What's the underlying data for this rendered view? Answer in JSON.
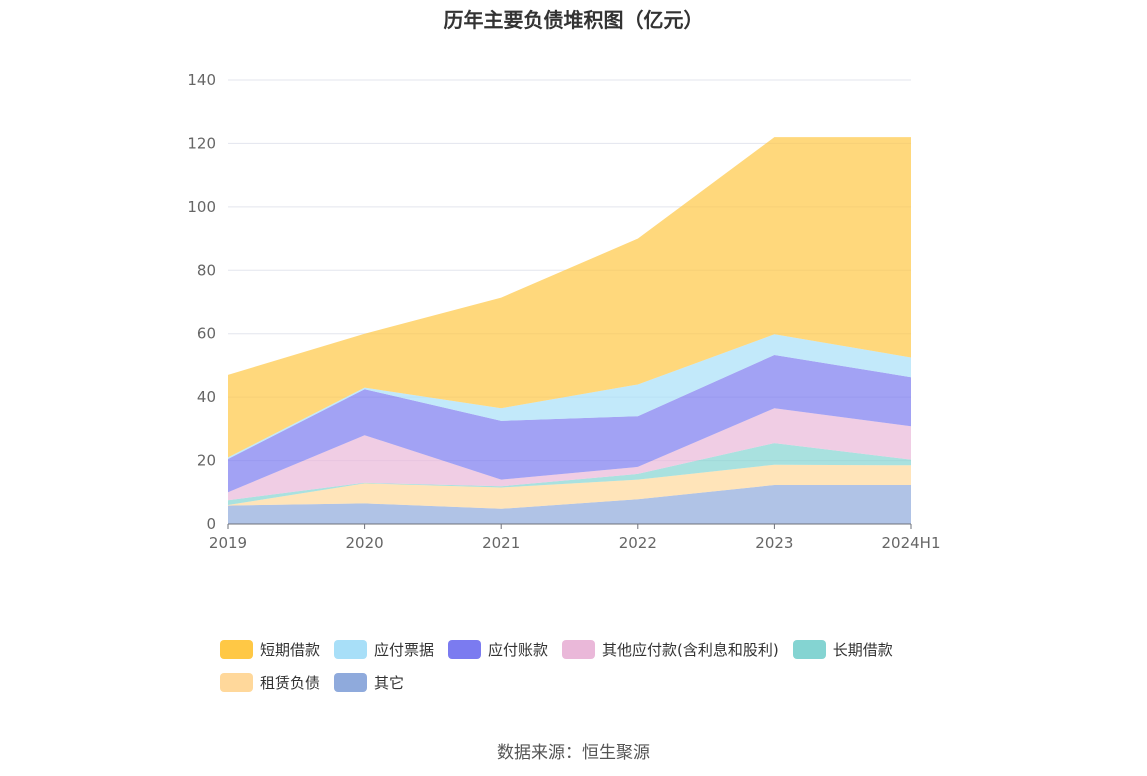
{
  "title": "历年主要负债堆积图（亿元）",
  "source": "数据来源：恒生聚源",
  "chart_data": {
    "type": "area",
    "stacked": true,
    "title": "历年主要负债堆积图（亿元）",
    "xlabel": "",
    "ylabel": "",
    "ylim": [
      0,
      140
    ],
    "yticks": [
      "0",
      "20",
      "40",
      "60",
      "80",
      "100",
      "120",
      "140"
    ],
    "categories": [
      "2019",
      "2020",
      "2021",
      "2022",
      "2023",
      "2024H1"
    ],
    "grid": true,
    "legend_position": "bottom",
    "series": [
      {
        "name": "其它",
        "color": "#8FAADC",
        "values": [
          5.8,
          6.5,
          4.8,
          7.8,
          12.3,
          12.3
        ]
      },
      {
        "name": "租赁负债",
        "color": "#FFD89B",
        "values": [
          0.2,
          6.3,
          6.7,
          6.2,
          6.4,
          6.2
        ]
      },
      {
        "name": "长期借款",
        "color": "#84D4D2",
        "values": [
          1.5,
          0.2,
          0.4,
          1.8,
          6.8,
          1.8
        ]
      },
      {
        "name": "其他应付款(含利息和股利)",
        "color": "#EAB8D9",
        "values": [
          2.5,
          15.0,
          2.1,
          2.2,
          11.0,
          10.5
        ]
      },
      {
        "name": "应付账款",
        "color": "#7B7BF0",
        "values": [
          10.5,
          14.5,
          18.5,
          16.0,
          16.8,
          15.5
        ]
      },
      {
        "name": "应付票据",
        "color": "#A8DFF8",
        "values": [
          0.5,
          0.5,
          4.0,
          10.0,
          6.5,
          6.2
        ]
      },
      {
        "name": "短期借款",
        "color": "#FFC845",
        "values": [
          26.0,
          17.0,
          34.9,
          46.0,
          62.2,
          69.5
        ]
      }
    ],
    "legend_order": [
      "短期借款",
      "应付票据",
      "应付账款",
      "其他应付款(含利息和股利)",
      "长期借款",
      "租赁负债",
      "其它"
    ]
  }
}
